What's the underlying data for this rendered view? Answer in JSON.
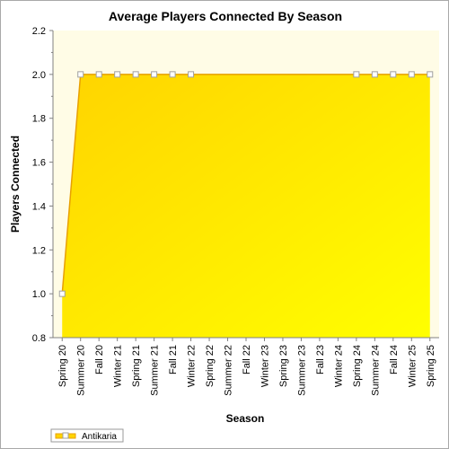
{
  "chart_data": {
    "type": "area",
    "title": "Average Players Connected By Season",
    "xlabel": "Season",
    "ylabel": "Players Connected",
    "ylim": [
      0.8,
      2.2
    ],
    "yticks": [
      "0.8",
      "1.0",
      "1.2",
      "1.4",
      "1.6",
      "1.8",
      "2.0",
      "2.2"
    ],
    "categories": [
      "Spring 20",
      "Summer 20",
      "Fall 20",
      "Winter 21",
      "Spring 21",
      "Summer 21",
      "Fall 21",
      "Winter 22",
      "Spring 22",
      "Summer 22",
      "Fall 22",
      "Winter 23",
      "Spring 23",
      "Summer 23",
      "Fall 23",
      "Winter 24",
      "Spring 24",
      "Summer 24",
      "Fall 24",
      "Winter 25",
      "Spring 25"
    ],
    "series": [
      {
        "name": "Antikaria",
        "values": [
          1.0,
          2.0,
          2.0,
          2.0,
          2.0,
          2.0,
          2.0,
          2.0,
          null,
          null,
          null,
          null,
          null,
          null,
          null,
          null,
          2.0,
          2.0,
          2.0,
          2.0,
          2.0
        ]
      }
    ],
    "grid": false,
    "legend_position": "bottom-left",
    "colors": {
      "plot_background": "#fffce6",
      "area_top": "#ffd400",
      "area_bottom": "#ffff00",
      "line": "#e8a000",
      "marker_fill": "#ffffff"
    }
  }
}
